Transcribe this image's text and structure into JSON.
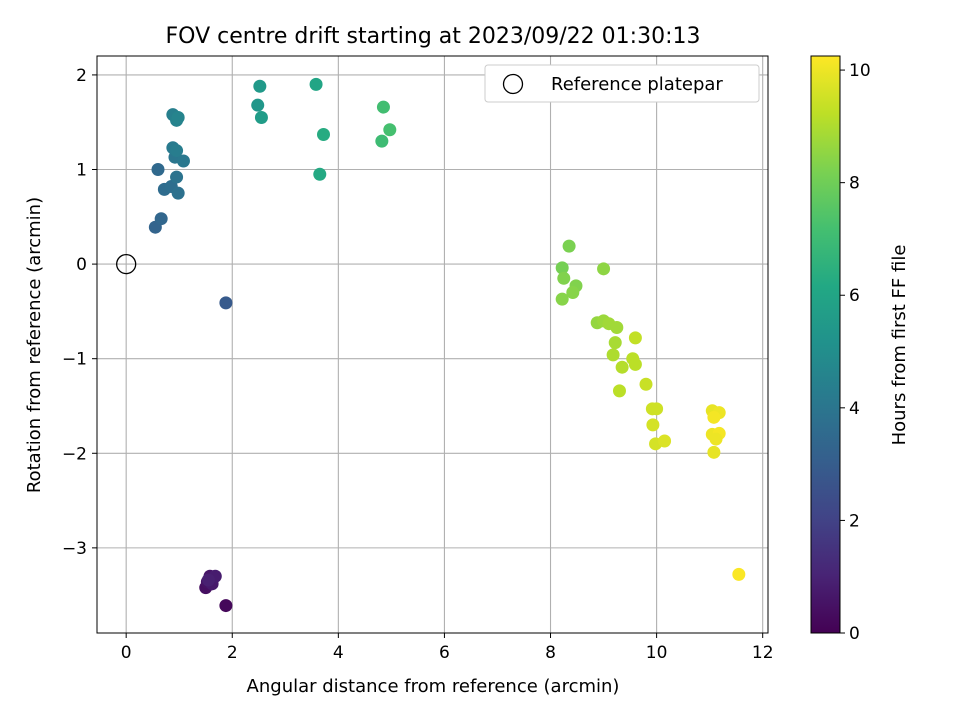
{
  "chart_data": {
    "type": "scatter",
    "title": "FOV centre drift starting at 2023/09/22 01:30:13",
    "xlabel": "Angular distance from reference (arcmin)",
    "ylabel": "Rotation from reference (arcmin)",
    "xlim": [
      -0.55,
      12.1
    ],
    "ylim": [
      -3.9,
      2.2
    ],
    "xticks": [
      0,
      2,
      4,
      6,
      8,
      10,
      12
    ],
    "yticks": [
      -3,
      -2,
      -1,
      0,
      1,
      2
    ],
    "xtick_labels": [
      "0",
      "2",
      "4",
      "6",
      "8",
      "10",
      "12"
    ],
    "ytick_labels": [
      "−3",
      "−2",
      "−1",
      "0",
      "1",
      "2"
    ],
    "grid": true,
    "legend": {
      "position": "top-right",
      "label": "Reference platepar"
    },
    "reference_point": {
      "x": 0,
      "y": 0
    },
    "colorbar": {
      "label": "Hours from first FF file",
      "colormap": "viridis",
      "range": [
        0,
        10.25
      ],
      "ticks": [
        0,
        2,
        4,
        6,
        8,
        10
      ],
      "tick_labels": [
        "0",
        "2",
        "4",
        "6",
        "8",
        "10"
      ]
    },
    "points": [
      {
        "x": 1.88,
        "y": -3.61,
        "c": 0.2
      },
      {
        "x": 1.5,
        "y": -3.42,
        "c": 0.4
      },
      {
        "x": 1.53,
        "y": -3.36,
        "c": 0.5
      },
      {
        "x": 1.58,
        "y": -3.3,
        "c": 0.6
      },
      {
        "x": 1.62,
        "y": -3.38,
        "c": 0.7
      },
      {
        "x": 1.68,
        "y": -3.3,
        "c": 0.8
      },
      {
        "x": 1.55,
        "y": -3.34,
        "c": 0.9
      },
      {
        "x": 1.88,
        "y": -0.41,
        "c": 2.9
      },
      {
        "x": 0.55,
        "y": 0.39,
        "c": 3.3
      },
      {
        "x": 0.66,
        "y": 0.48,
        "c": 3.4
      },
      {
        "x": 0.6,
        "y": 1.0,
        "c": 3.5
      },
      {
        "x": 0.72,
        "y": 0.79,
        "c": 3.6
      },
      {
        "x": 0.85,
        "y": 0.82,
        "c": 3.7
      },
      {
        "x": 0.98,
        "y": 0.75,
        "c": 3.8
      },
      {
        "x": 0.95,
        "y": 0.92,
        "c": 3.9
      },
      {
        "x": 0.92,
        "y": 1.13,
        "c": 4.0
      },
      {
        "x": 1.08,
        "y": 1.09,
        "c": 4.1
      },
      {
        "x": 0.88,
        "y": 1.23,
        "c": 4.2
      },
      {
        "x": 0.95,
        "y": 1.2,
        "c": 4.3
      },
      {
        "x": 0.88,
        "y": 1.58,
        "c": 4.4
      },
      {
        "x": 0.95,
        "y": 1.52,
        "c": 4.5
      },
      {
        "x": 0.98,
        "y": 1.55,
        "c": 4.6
      },
      {
        "x": 2.48,
        "y": 1.68,
        "c": 5.4
      },
      {
        "x": 2.52,
        "y": 1.88,
        "c": 5.5
      },
      {
        "x": 2.55,
        "y": 1.55,
        "c": 5.6
      },
      {
        "x": 3.58,
        "y": 1.9,
        "c": 6.0
      },
      {
        "x": 3.65,
        "y": 0.95,
        "c": 6.2
      },
      {
        "x": 3.72,
        "y": 1.37,
        "c": 6.3
      },
      {
        "x": 4.82,
        "y": 1.3,
        "c": 7.0
      },
      {
        "x": 4.85,
        "y": 1.66,
        "c": 7.1
      },
      {
        "x": 4.97,
        "y": 1.42,
        "c": 7.2
      },
      {
        "x": 8.22,
        "y": -0.04,
        "c": 8.1
      },
      {
        "x": 8.35,
        "y": 0.19,
        "c": 8.2
      },
      {
        "x": 8.25,
        "y": -0.15,
        "c": 8.3
      },
      {
        "x": 8.48,
        "y": -0.23,
        "c": 8.3
      },
      {
        "x": 8.42,
        "y": -0.3,
        "c": 8.4
      },
      {
        "x": 8.22,
        "y": -0.37,
        "c": 8.4
      },
      {
        "x": 9.0,
        "y": -0.05,
        "c": 8.5
      },
      {
        "x": 8.88,
        "y": -0.62,
        "c": 8.6
      },
      {
        "x": 9.0,
        "y": -0.6,
        "c": 8.7
      },
      {
        "x": 9.1,
        "y": -0.63,
        "c": 8.8
      },
      {
        "x": 9.25,
        "y": -0.67,
        "c": 8.8
      },
      {
        "x": 9.22,
        "y": -0.83,
        "c": 8.9
      },
      {
        "x": 9.18,
        "y": -0.96,
        "c": 9.0
      },
      {
        "x": 9.35,
        "y": -1.09,
        "c": 9.1
      },
      {
        "x": 9.55,
        "y": -1.0,
        "c": 9.2
      },
      {
        "x": 9.6,
        "y": -1.06,
        "c": 9.2
      },
      {
        "x": 9.6,
        "y": -0.78,
        "c": 9.3
      },
      {
        "x": 9.3,
        "y": -1.34,
        "c": 9.2
      },
      {
        "x": 9.8,
        "y": -1.27,
        "c": 9.4
      },
      {
        "x": 9.92,
        "y": -1.53,
        "c": 9.5
      },
      {
        "x": 10.0,
        "y": -1.53,
        "c": 9.5
      },
      {
        "x": 9.93,
        "y": -1.7,
        "c": 9.6
      },
      {
        "x": 9.98,
        "y": -1.9,
        "c": 9.6
      },
      {
        "x": 10.15,
        "y": -1.87,
        "c": 9.7
      },
      {
        "x": 11.05,
        "y": -1.55,
        "c": 9.9
      },
      {
        "x": 11.18,
        "y": -1.57,
        "c": 10.0
      },
      {
        "x": 11.08,
        "y": -1.62,
        "c": 10.1
      },
      {
        "x": 11.05,
        "y": -1.8,
        "c": 10.0
      },
      {
        "x": 11.18,
        "y": -1.79,
        "c": 10.1
      },
      {
        "x": 11.12,
        "y": -1.85,
        "c": 10.0
      },
      {
        "x": 11.08,
        "y": -1.99,
        "c": 9.9
      },
      {
        "x": 11.55,
        "y": -3.28,
        "c": 10.2
      }
    ]
  }
}
